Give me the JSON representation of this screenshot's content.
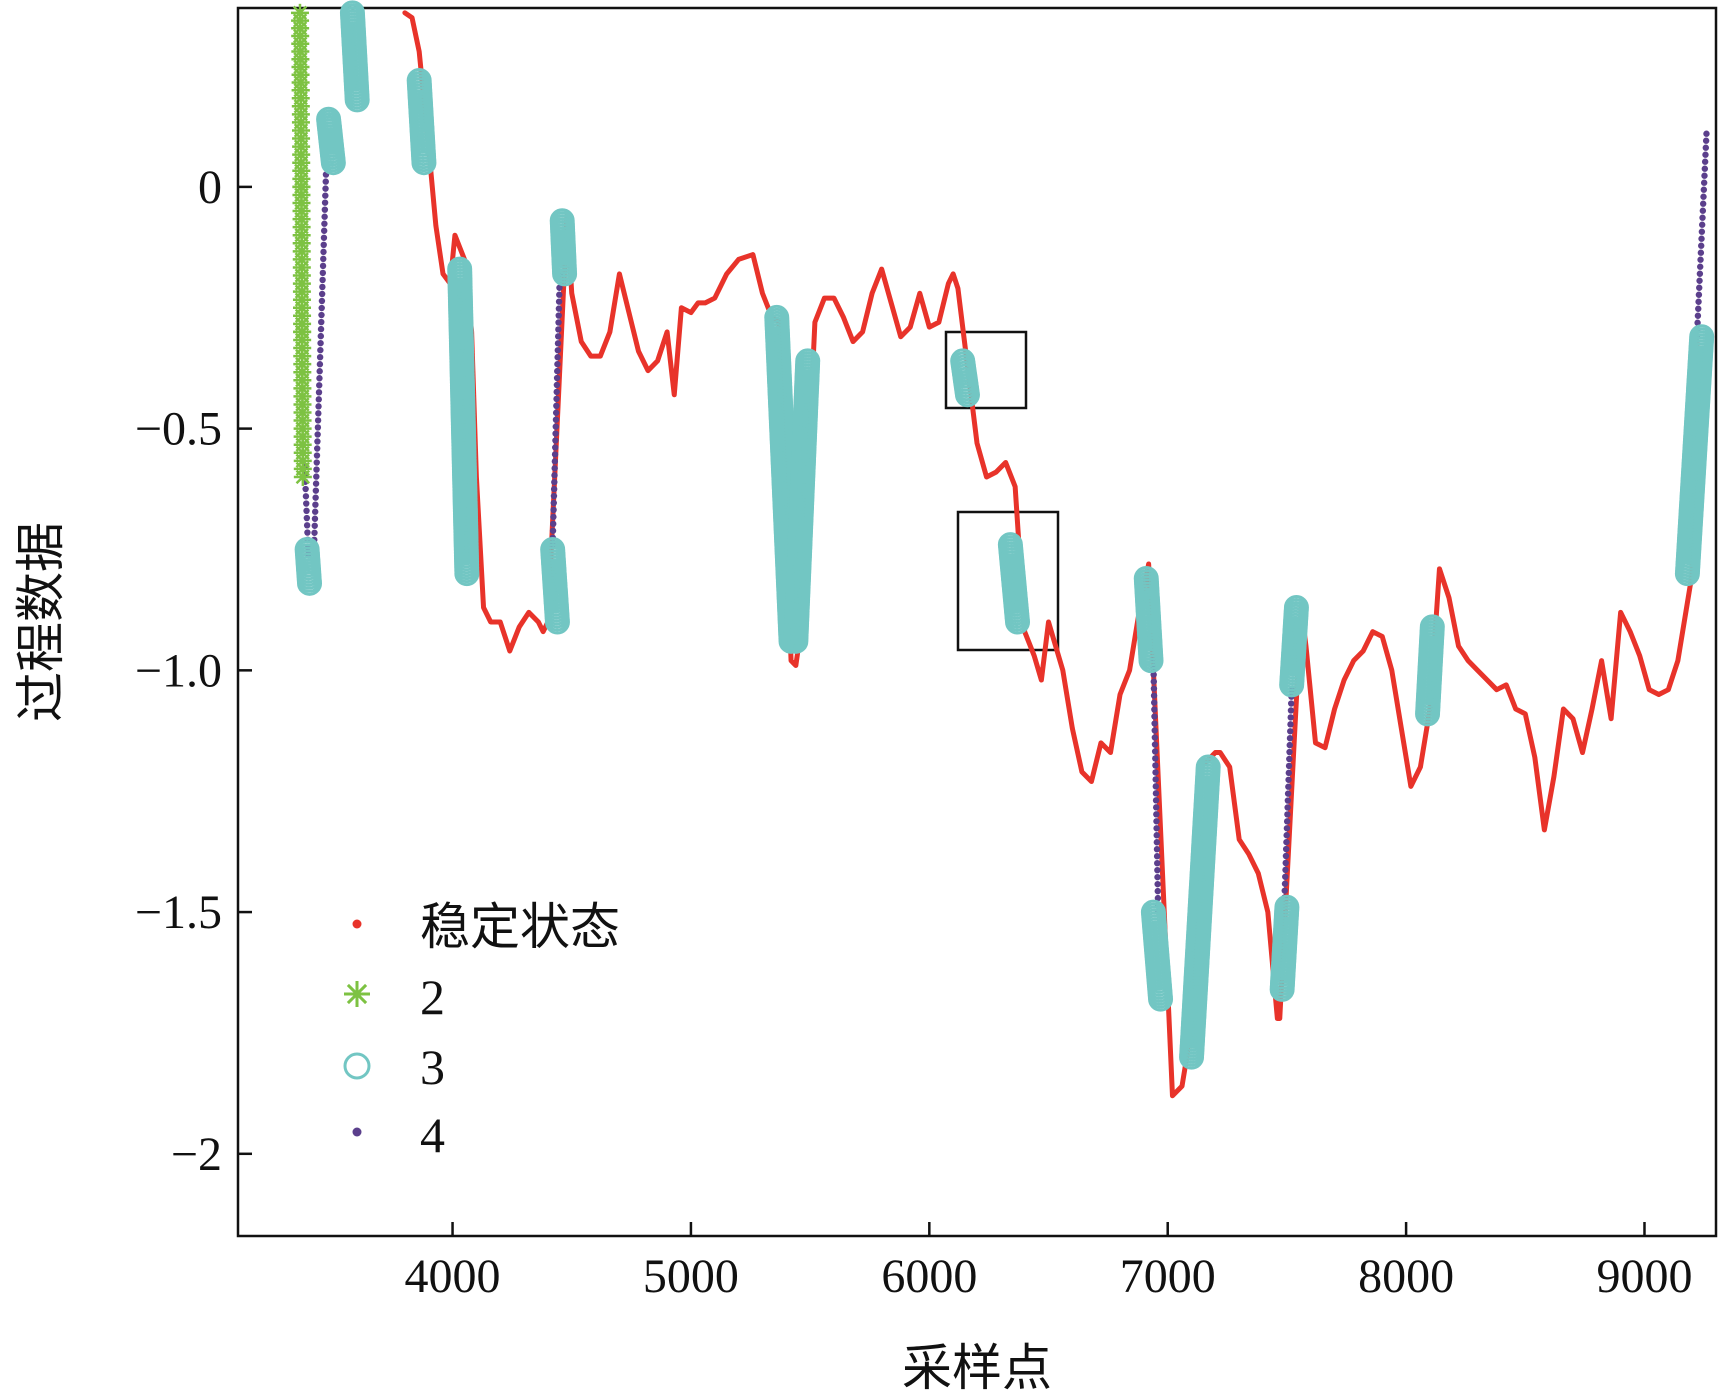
{
  "chart_data": {
    "type": "line",
    "xlabel": "采样点",
    "ylabel": "过程数据",
    "xlim": [
      3100,
      9300
    ],
    "ylim": [
      -2.17,
      0.37
    ],
    "xticks": [
      4000,
      5000,
      6000,
      7000,
      8000,
      9000
    ],
    "xtick_labels": [
      "4000",
      "5000",
      "6000",
      "7000",
      "8000",
      "9000"
    ],
    "yticks": [
      0,
      -0.5,
      -1.0,
      -1.5,
      -2
    ],
    "ytick_labels": [
      "0",
      "−0.5",
      "−1.0",
      "−1.5",
      "−2"
    ],
    "grid": false,
    "legend_position": "bottom-left",
    "series": [
      {
        "name": "稳定状态",
        "marker": "dot",
        "color": "#e8332a",
        "x": [
          3800,
          3830,
          3860,
          3900,
          3930,
          3960,
          3990,
          4010,
          4050,
          4080,
          4100,
          4130,
          4160,
          4200,
          4240,
          4280,
          4320,
          4360,
          4380,
          4400,
          4480,
          4500,
          4540,
          4580,
          4620,
          4660,
          4700,
          4740,
          4780,
          4820,
          4860,
          4900,
          4930,
          4960,
          5000,
          5030,
          5060,
          5100,
          5150,
          5200,
          5260,
          5300,
          5340,
          5370,
          5420,
          5440,
          5460,
          5520,
          5560,
          5600,
          5640,
          5680,
          5720,
          5760,
          5800,
          5840,
          5880,
          5920,
          5960,
          6000,
          6040,
          6080,
          6100,
          6120,
          6200,
          6240,
          6280,
          6320,
          6360,
          6400,
          6440,
          6470,
          6500,
          6560,
          6600,
          6640,
          6680,
          6720,
          6760,
          6800,
          6840,
          6880,
          6920,
          7020,
          7060,
          7080,
          7110,
          7140,
          7200,
          7220,
          7260,
          7300,
          7340,
          7380,
          7420,
          7460,
          7470,
          7560,
          7580,
          7620,
          7660,
          7700,
          7740,
          7780,
          7820,
          7860,
          7900,
          7940,
          7980,
          8020,
          8060,
          8100,
          8140,
          8180,
          8220,
          8260,
          8300,
          8340,
          8380,
          8420,
          8460,
          8500,
          8540,
          8580,
          8620,
          8660,
          8700,
          8740,
          8780,
          8820,
          8860,
          8900,
          8940,
          8980,
          9020,
          9060,
          9100,
          9140,
          9180,
          9200,
          9220
        ],
        "y": [
          0.36,
          0.35,
          0.28,
          0.08,
          -0.08,
          -0.18,
          -0.2,
          -0.1,
          -0.15,
          -0.3,
          -0.6,
          -0.87,
          -0.9,
          -0.9,
          -0.96,
          -0.91,
          -0.88,
          -0.9,
          -0.92,
          -0.9,
          -0.06,
          -0.22,
          -0.32,
          -0.35,
          -0.35,
          -0.3,
          -0.18,
          -0.26,
          -0.34,
          -0.38,
          -0.36,
          -0.3,
          -0.43,
          -0.25,
          -0.26,
          -0.24,
          -0.24,
          -0.23,
          -0.18,
          -0.15,
          -0.14,
          -0.22,
          -0.27,
          -0.28,
          -0.98,
          -0.99,
          -0.92,
          -0.28,
          -0.23,
          -0.23,
          -0.27,
          -0.32,
          -0.3,
          -0.22,
          -0.17,
          -0.24,
          -0.31,
          -0.29,
          -0.22,
          -0.29,
          -0.28,
          -0.2,
          -0.18,
          -0.21,
          -0.53,
          -0.6,
          -0.59,
          -0.57,
          -0.62,
          -0.92,
          -0.97,
          -1.02,
          -0.9,
          -1.0,
          -1.12,
          -1.21,
          -1.23,
          -1.15,
          -1.17,
          -1.05,
          -1.0,
          -0.88,
          -0.78,
          -1.88,
          -1.86,
          -1.8,
          -1.65,
          -1.2,
          -1.17,
          -1.17,
          -1.2,
          -1.35,
          -1.38,
          -1.42,
          -1.5,
          -1.72,
          -1.72,
          -0.87,
          -0.95,
          -1.15,
          -1.16,
          -1.08,
          -1.02,
          -0.98,
          -0.96,
          -0.92,
          -0.93,
          -1.0,
          -1.12,
          -1.24,
          -1.2,
          -1.08,
          -0.79,
          -0.85,
          -0.95,
          -0.98,
          -1.0,
          -1.02,
          -1.04,
          -1.03,
          -1.08,
          -1.09,
          -1.18,
          -1.33,
          -1.22,
          -1.08,
          -1.1,
          -1.17,
          -1.08,
          -0.98,
          -1.1,
          -0.88,
          -0.92,
          -0.97,
          -1.04,
          -1.05,
          -1.04,
          -0.98,
          -0.86,
          -0.8,
          -0.32
        ]
      },
      {
        "name": "2",
        "marker": "asterisk",
        "color": "#7dc242",
        "x": [
          3360,
          3363,
          3366,
          3369,
          3372
        ],
        "y": [
          0.36,
          0.2,
          0.0,
          -0.3,
          -0.6
        ]
      },
      {
        "name": "3",
        "marker": "circle",
        "color": "#72c6c3",
        "segments": [
          {
            "x": [
              3390,
              3400
            ],
            "y": [
              -0.75,
              -0.82
            ]
          },
          {
            "x": [
              3480,
              3500
            ],
            "y": [
              0.14,
              0.05
            ]
          },
          {
            "x": [
              3580,
              3600
            ],
            "y": [
              0.36,
              0.18
            ]
          },
          {
            "x": [
              3860,
              3880
            ],
            "y": [
              0.22,
              0.05
            ]
          },
          {
            "x": [
              4030,
              4060
            ],
            "y": [
              -0.17,
              -0.8
            ]
          },
          {
            "x": [
              4420,
              4440
            ],
            "y": [
              -0.75,
              -0.9
            ]
          },
          {
            "x": [
              4460,
              4470
            ],
            "y": [
              -0.07,
              -0.18
            ]
          },
          {
            "x": [
              5360,
              5420
            ],
            "y": [
              -0.27,
              -0.94
            ]
          },
          {
            "x": [
              5440,
              5490
            ],
            "y": [
              -0.94,
              -0.36
            ]
          },
          {
            "x": [
              6140,
              6160
            ],
            "y": [
              -0.36,
              -0.43
            ]
          },
          {
            "x": [
              6340,
              6370
            ],
            "y": [
              -0.74,
              -0.9
            ]
          },
          {
            "x": [
              6910,
              6930
            ],
            "y": [
              -0.81,
              -0.98
            ]
          },
          {
            "x": [
              6940,
              6970
            ],
            "y": [
              -1.5,
              -1.68
            ]
          },
          {
            "x": [
              7100,
              7170
            ],
            "y": [
              -1.8,
              -1.2
            ]
          },
          {
            "x": [
              7480,
              7500
            ],
            "y": [
              -1.66,
              -1.49
            ]
          },
          {
            "x": [
              7520,
              7540
            ],
            "y": [
              -1.03,
              -0.87
            ]
          },
          {
            "x": [
              8090,
              8110
            ],
            "y": [
              -1.09,
              -0.91
            ]
          },
          {
            "x": [
              9180,
              9240
            ],
            "y": [
              -0.8,
              -0.31
            ]
          }
        ]
      },
      {
        "name": "4",
        "marker": "dot",
        "color": "#5b3f8c",
        "segments": [
          {
            "x": [
              3380,
              3395
            ],
            "y": [
              -0.58,
              -0.76
            ]
          },
          {
            "x": [
              3420,
              3470
            ],
            "y": [
              -0.73,
              0.04
            ]
          },
          {
            "x": [
              4420,
              4450
            ],
            "y": [
              -0.74,
              -0.18
            ]
          },
          {
            "x": [
              6940,
              6960
            ],
            "y": [
              -0.98,
              -1.5
            ]
          },
          {
            "x": [
              7490,
              7520
            ],
            "y": [
              -1.47,
              -1.04
            ]
          },
          {
            "x": [
              9220,
              9260
            ],
            "y": [
              -0.31,
              0.11
            ]
          }
        ]
      }
    ]
  }
}
